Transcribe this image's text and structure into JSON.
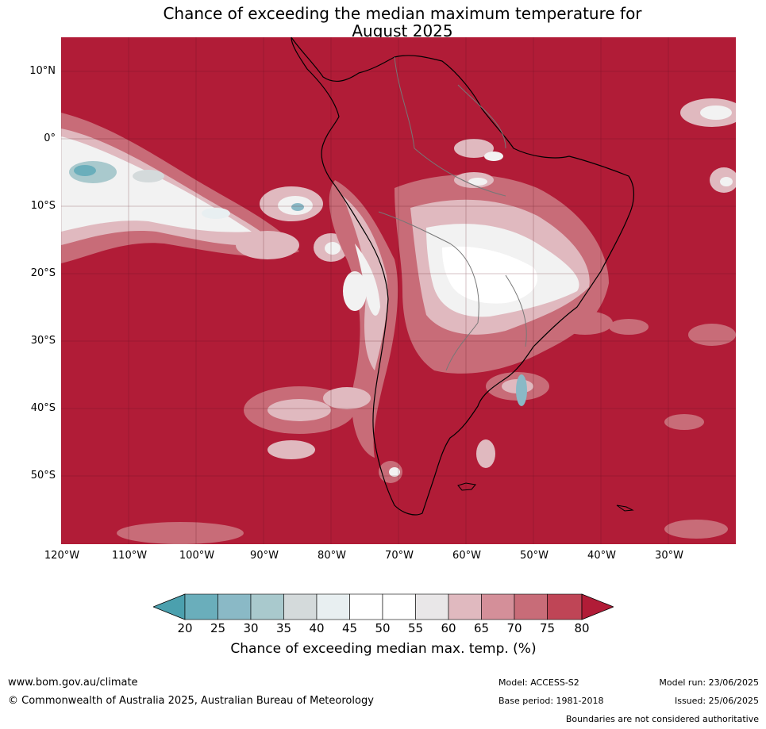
{
  "title": {
    "line1": "Chance of exceeding the median maximum temperature for",
    "line2": "August 2025"
  },
  "axes": {
    "lat_labels": [
      "10°N",
      "0°",
      "10°S",
      "20°S",
      "30°S",
      "40°S",
      "50°S"
    ],
    "lon_labels": [
      "120°W",
      "110°W",
      "100°W",
      "90°W",
      "80°W",
      "70°W",
      "60°W",
      "50°W",
      "40°W",
      "30°W"
    ]
  },
  "colorbar": {
    "ticks": [
      "20",
      "25",
      "30",
      "35",
      "40",
      "45",
      "50",
      "55",
      "60",
      "65",
      "70",
      "75",
      "80"
    ],
    "colors": [
      "#4ba0ae",
      "#6aaebb",
      "#8ab9c6",
      "#a9c9cd",
      "#d4dadb",
      "#e8eff1",
      "#ffffff",
      "#ffffff",
      "#e9e7e8",
      "#e0b9bf",
      "#d48f99",
      "#c86c78",
      "#bf4556",
      "#b11c37"
    ],
    "label": "Chance of exceeding median max. temp. (%)"
  },
  "colors": {
    "high": "#b11c37",
    "mid_high": "#c86c78",
    "light_pink": "#e0b9bf",
    "near_white": "#f2f2f2",
    "low_blue": "#6aaebb"
  },
  "footer": {
    "website": "www.bom.gov.au/climate",
    "copyright": "© Commonwealth of Australia 2025, Australian Bureau of Meteorology",
    "model": "Model: ACCESS-S2",
    "base_period": "Base period: 1981-2018",
    "model_run": "Model run: 23/06/2025",
    "issued": "Issued: 25/06/2025",
    "boundaries": "Boundaries are not considered authoritative"
  }
}
